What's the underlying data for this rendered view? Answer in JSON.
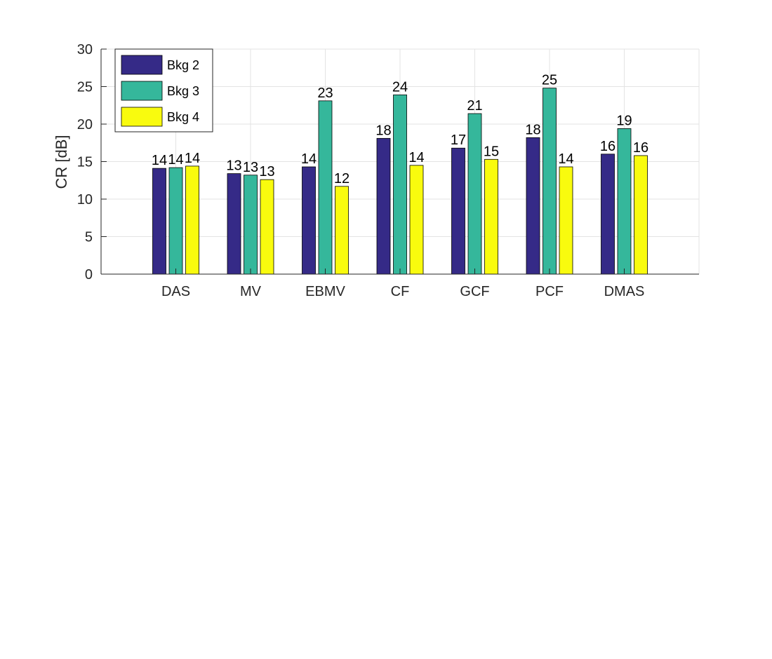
{
  "chart_data": {
    "type": "bar",
    "title": "",
    "xlabel": "",
    "ylabel": "CR [dB]",
    "ylim": [
      0,
      30
    ],
    "yticks": [
      0,
      5,
      10,
      15,
      20,
      25,
      30
    ],
    "grid": true,
    "legend_position": "top-left",
    "categories": [
      "DAS",
      "MV",
      "EBMV",
      "CF",
      "GCF",
      "PCF",
      "DMAS"
    ],
    "series": [
      {
        "name": "Bkg 2",
        "color": "#352a87",
        "values": [
          14.1,
          13.4,
          14.3,
          18.1,
          16.8,
          18.2,
          16.0
        ],
        "labels": [
          "14",
          "13",
          "14",
          "18",
          "17",
          "18",
          "16"
        ]
      },
      {
        "name": "Bkg 3",
        "color": "#35b79b",
        "values": [
          14.2,
          13.2,
          23.1,
          23.9,
          21.4,
          24.8,
          19.4
        ],
        "labels": [
          "14",
          "13",
          "23",
          "24",
          "21",
          "25",
          "19"
        ]
      },
      {
        "name": "Bkg 4",
        "color": "#f9fb0e",
        "values": [
          14.4,
          12.6,
          11.7,
          14.5,
          15.3,
          14.3,
          15.8
        ],
        "labels": [
          "14",
          "13",
          "12",
          "14",
          "15",
          "14",
          "16"
        ]
      }
    ]
  }
}
